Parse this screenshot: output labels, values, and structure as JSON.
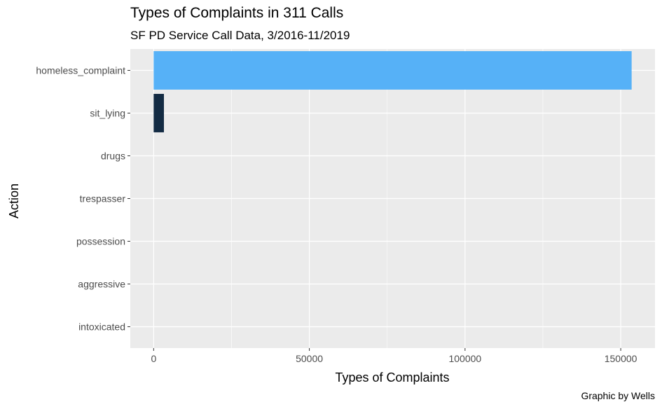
{
  "chart_data": {
    "type": "bar",
    "orientation": "horizontal",
    "title": "Types of Complaints in 311 Calls",
    "subtitle": "SF PD Service Call Data, 3/2016-11/2019",
    "xlabel": "Types of Complaints",
    "ylabel": "Action",
    "caption": "Graphic by Wells",
    "categories": [
      "homeless_complaint",
      "sit_lying",
      "drugs",
      "trespasser",
      "possession",
      "aggressive",
      "intoxicated"
    ],
    "values": [
      153500,
      3300,
      0,
      0,
      0,
      0,
      0
    ],
    "bar_colors": [
      "#56B1F7",
      "#132B43",
      "#132B43",
      "#132B43",
      "#132B43",
      "#132B43",
      "#132B43"
    ],
    "x_ticks": [
      0,
      50000,
      100000,
      150000
    ],
    "x_tick_labels": [
      "0",
      "50000",
      "100000",
      "150000"
    ],
    "xlim": [
      -7500,
      161000
    ],
    "grid": true,
    "panel_background": "#EBEBEB",
    "gridline_color": "#FFFFFF"
  }
}
